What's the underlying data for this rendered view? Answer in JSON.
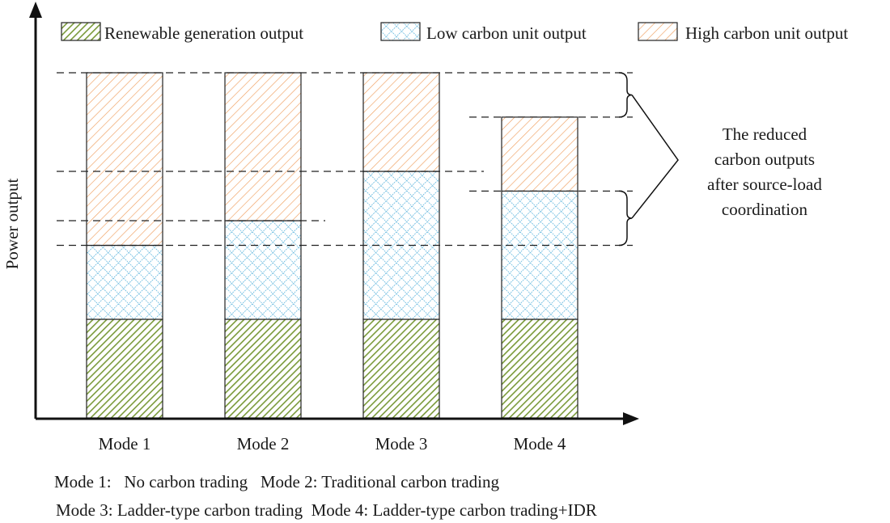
{
  "chart_data": {
    "type": "bar",
    "stacked": true,
    "categories": [
      "Mode 1",
      "Mode 2",
      "Mode 3",
      "Mode 4"
    ],
    "series": [
      {
        "name": "Renewable generation output",
        "color": "#7a9a3a",
        "pattern": "diagonal-dense",
        "values": [
          1.0,
          1.0,
          1.0,
          1.0
        ]
      },
      {
        "name": "Low carbon unit output",
        "color": "#3fa7d6",
        "pattern": "crosshatch",
        "values": [
          0.75,
          1.0,
          1.5,
          1.3
        ]
      },
      {
        "name": "High carbon unit output",
        "color": "#f0a060",
        "pattern": "diagonal",
        "values": [
          1.75,
          1.5,
          1.0,
          0.75
        ]
      }
    ],
    "ylabel": "Power output",
    "xlabel": "",
    "axis_ticks": false,
    "legend_position": "top",
    "reference_lines": [
      {
        "y": 3.5,
        "from_bar": 0,
        "to_bar": 3
      },
      {
        "y": 2.5,
        "from_bar": 0,
        "to_bar": 2
      },
      {
        "y": 2.0,
        "from_bar": 0,
        "to_bar": 1
      },
      {
        "y": 1.75,
        "from_bar": 0,
        "to_bar": 3
      },
      {
        "y": 3.05,
        "from_bar": 3,
        "to_bar": 3
      },
      {
        "y": 2.3,
        "from_bar": 3,
        "to_bar": 3
      }
    ],
    "annotation": {
      "text_lines": [
        "The reduced",
        "carbon outputs",
        "after source-load",
        "coordination"
      ],
      "brackets": [
        [
          3.05,
          3.5
        ],
        [
          1.75,
          2.3
        ]
      ]
    }
  },
  "caption": {
    "line1": "Mode 1:   No carbon trading   Mode 2: Traditional carbon trading",
    "line2": "Mode 3: Ladder-type carbon trading  Mode 4: Ladder-type carbon trading+IDR"
  }
}
